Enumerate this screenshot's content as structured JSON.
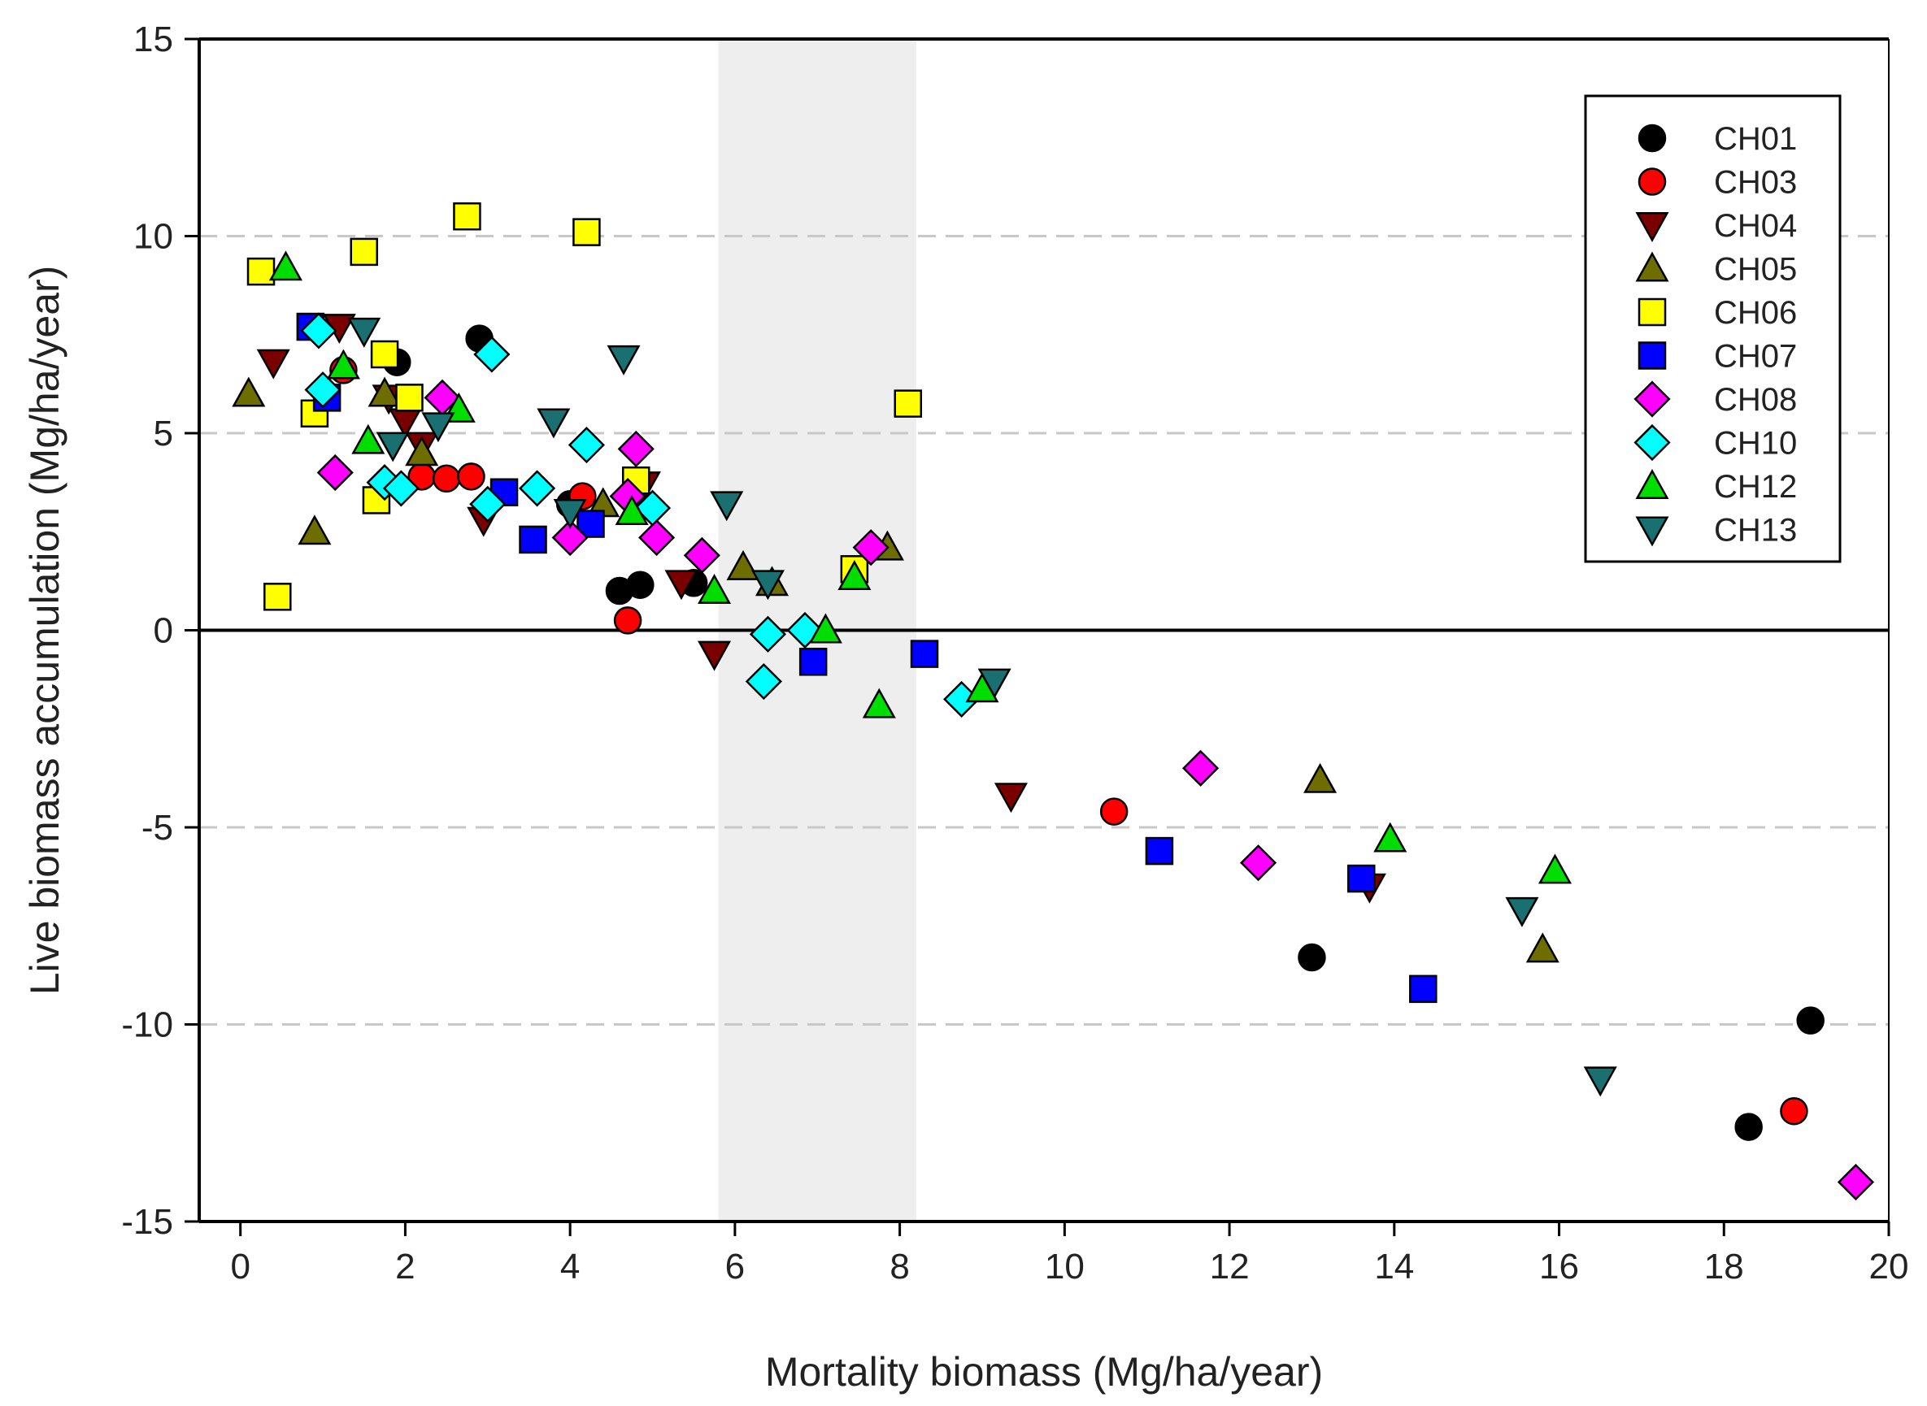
{
  "chart_data": {
    "type": "scatter",
    "title": "",
    "xlabel": "Mortality biomass (Mg/ha/year)",
    "ylabel": "Live biomass accumulation (Mg/ha/year)",
    "xlim": [
      -0.5,
      20
    ],
    "ylim": [
      -15,
      15
    ],
    "x_ticks": [
      0,
      2,
      4,
      6,
      8,
      10,
      12,
      14,
      16,
      18,
      20
    ],
    "y_ticks": [
      -15,
      -10,
      -5,
      0,
      5,
      10,
      15
    ],
    "x_tick_labels": [
      "0",
      "2",
      "4",
      "6",
      "8",
      "10",
      "12",
      "14",
      "16",
      "18",
      "20"
    ],
    "y_tick_labels": [
      "-15",
      "-10",
      "-5",
      "0",
      "5",
      "10",
      "15"
    ],
    "grid": {
      "y_dashed_at": [
        -10,
        -5,
        5,
        10
      ],
      "solid_line_at": 0
    },
    "shaded_band_x": [
      5.8,
      8.2
    ],
    "legend_position": "top-right",
    "series": [
      {
        "name": "CH01",
        "marker": "circle",
        "color": "#000000",
        "points": [
          [
            1.9,
            6.8
          ],
          [
            2.9,
            7.4
          ],
          [
            4.0,
            3.2
          ],
          [
            4.6,
            1.0
          ],
          [
            4.85,
            1.15
          ],
          [
            5.5,
            1.2
          ],
          [
            13.0,
            -8.3
          ],
          [
            18.3,
            -12.6
          ],
          [
            19.05,
            -9.9
          ]
        ]
      },
      {
        "name": "CH03",
        "marker": "circle",
        "color": "#ff0000",
        "points": [
          [
            1.25,
            6.6
          ],
          [
            2.2,
            3.9
          ],
          [
            2.5,
            3.85
          ],
          [
            2.8,
            3.9
          ],
          [
            4.15,
            3.4
          ],
          [
            4.7,
            0.25
          ],
          [
            10.6,
            -4.6
          ],
          [
            18.85,
            -12.2
          ]
        ]
      },
      {
        "name": "CH04",
        "marker": "triangle-down",
        "color": "#7a0000",
        "points": [
          [
            0.4,
            6.8
          ],
          [
            1.2,
            7.7
          ],
          [
            1.8,
            5.9
          ],
          [
            2.0,
            5.3
          ],
          [
            2.2,
            4.7
          ],
          [
            2.95,
            2.8
          ],
          [
            4.9,
            3.7
          ],
          [
            5.35,
            1.2
          ],
          [
            5.75,
            -0.6
          ],
          [
            9.35,
            -4.2
          ],
          [
            13.7,
            -6.5
          ]
        ]
      },
      {
        "name": "CH05",
        "marker": "triangle-up",
        "color": "#6e6e00",
        "points": [
          [
            0.1,
            6.0
          ],
          [
            0.9,
            2.5
          ],
          [
            1.75,
            6.0
          ],
          [
            2.2,
            4.5
          ],
          [
            4.4,
            3.2
          ],
          [
            6.1,
            1.6
          ],
          [
            6.45,
            1.2
          ],
          [
            7.85,
            2.1
          ],
          [
            13.1,
            -3.8
          ],
          [
            15.8,
            -8.1
          ]
        ]
      },
      {
        "name": "CH06",
        "marker": "square",
        "color": "#ffff00",
        "points": [
          [
            0.25,
            9.1
          ],
          [
            0.45,
            0.85
          ],
          [
            0.9,
            5.5
          ],
          [
            1.5,
            9.6
          ],
          [
            1.65,
            3.3
          ],
          [
            1.75,
            7.0
          ],
          [
            2.05,
            5.9
          ],
          [
            2.75,
            10.5
          ],
          [
            4.2,
            10.1
          ],
          [
            4.8,
            3.8
          ],
          [
            7.45,
            1.55
          ],
          [
            8.1,
            5.75
          ]
        ]
      },
      {
        "name": "CH07",
        "marker": "square",
        "color": "#0000ff",
        "points": [
          [
            0.85,
            7.7
          ],
          [
            1.05,
            5.9
          ],
          [
            3.2,
            3.5
          ],
          [
            3.55,
            2.3
          ],
          [
            4.25,
            2.7
          ],
          [
            6.95,
            -0.8
          ],
          [
            8.3,
            -0.6
          ],
          [
            11.15,
            -5.6
          ],
          [
            13.6,
            -6.3
          ],
          [
            14.35,
            -9.1
          ]
        ]
      },
      {
        "name": "CH08",
        "marker": "diamond",
        "color": "#ff00ff",
        "points": [
          [
            1.15,
            4.0
          ],
          [
            2.45,
            5.9
          ],
          [
            4.0,
            2.35
          ],
          [
            4.7,
            3.4
          ],
          [
            4.8,
            4.6
          ],
          [
            5.05,
            2.35
          ],
          [
            5.6,
            1.9
          ],
          [
            7.65,
            2.1
          ],
          [
            11.65,
            -3.5
          ],
          [
            12.35,
            -5.9
          ],
          [
            19.6,
            -14.0
          ]
        ]
      },
      {
        "name": "CH10",
        "marker": "diamond",
        "color": "#00ffff",
        "points": [
          [
            0.95,
            7.6
          ],
          [
            1.0,
            6.1
          ],
          [
            1.75,
            3.75
          ],
          [
            1.95,
            3.6
          ],
          [
            3.0,
            3.2
          ],
          [
            3.05,
            7.0
          ],
          [
            3.6,
            3.6
          ],
          [
            4.2,
            4.7
          ],
          [
            5.0,
            3.1
          ],
          [
            6.35,
            -1.3
          ],
          [
            6.4,
            -0.1
          ],
          [
            6.85,
            0.0
          ],
          [
            8.75,
            -1.75
          ]
        ]
      },
      {
        "name": "CH12",
        "marker": "triangle-up",
        "color": "#00dd00",
        "points": [
          [
            0.55,
            9.2
          ],
          [
            1.25,
            6.7
          ],
          [
            1.55,
            4.8
          ],
          [
            2.65,
            5.6
          ],
          [
            4.75,
            3.0
          ],
          [
            5.75,
            1.0
          ],
          [
            7.1,
            0.0
          ],
          [
            7.45,
            1.35
          ],
          [
            7.75,
            -1.9
          ],
          [
            9.0,
            -1.5
          ],
          [
            13.95,
            -5.3
          ],
          [
            15.95,
            -6.1
          ]
        ]
      },
      {
        "name": "CH13",
        "marker": "triangle-down",
        "color": "#1a7070",
        "points": [
          [
            1.5,
            7.6
          ],
          [
            1.85,
            4.7
          ],
          [
            2.4,
            5.2
          ],
          [
            3.8,
            5.3
          ],
          [
            4.0,
            3.0
          ],
          [
            4.65,
            6.9
          ],
          [
            5.9,
            3.2
          ],
          [
            6.4,
            1.2
          ],
          [
            9.15,
            -1.3
          ],
          [
            15.55,
            -7.1
          ],
          [
            16.5,
            -11.4
          ]
        ]
      }
    ]
  }
}
